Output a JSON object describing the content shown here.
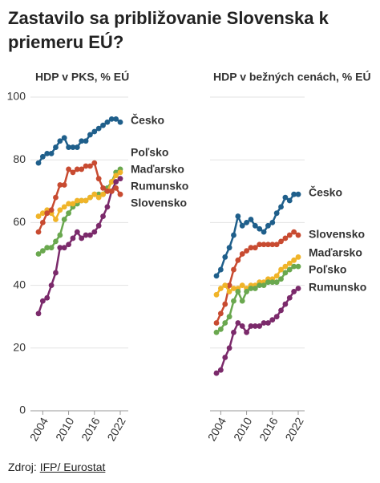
{
  "title": "Zastavilo sa približovanie Slovenska k priemeru EÚ?",
  "source_prefix": "Zdroj:",
  "source_link": "IFP/ Eurostat",
  "chart_data": [
    {
      "type": "line",
      "subtitle": "HDP v PKS, % EÚ",
      "x": [
        2003,
        2004,
        2005,
        2006,
        2007,
        2008,
        2009,
        2010,
        2011,
        2012,
        2013,
        2014,
        2015,
        2016,
        2017,
        2018,
        2019,
        2020,
        2021,
        2022
      ],
      "xlim": [
        2003,
        2022
      ],
      "xticks": [
        2004,
        2010,
        2016,
        2022
      ],
      "ylim": [
        0,
        100
      ],
      "yticks": [
        0,
        20,
        40,
        60,
        80,
        100
      ],
      "grid": true,
      "series": [
        {
          "name": "Česko",
          "color": "#1f5f8b",
          "values": [
            79,
            81,
            82,
            82,
            84,
            86,
            87,
            84,
            84,
            84,
            86,
            86,
            88,
            89,
            90,
            91,
            92,
            93,
            93,
            92
          ]
        },
        {
          "name": "Poľsko",
          "color": "#6aa84f",
          "values": [
            50,
            51,
            52,
            52,
            54,
            56,
            61,
            63,
            65,
            66,
            67,
            67,
            68,
            69,
            69,
            69,
            71,
            73,
            76,
            77
          ]
        },
        {
          "name": "Maďarsko",
          "color": "#f0b429",
          "values": [
            62,
            63,
            64,
            63,
            61,
            64,
            65,
            66,
            66,
            67,
            67,
            67,
            68,
            69,
            68,
            69,
            70,
            73,
            75,
            76
          ]
        },
        {
          "name": "Rumunsko",
          "color": "#7b2a6b",
          "values": [
            31,
            35,
            36,
            40,
            44,
            52,
            52,
            53,
            55,
            57,
            55,
            56,
            56,
            57,
            59,
            62,
            65,
            70,
            73,
            74
          ]
        },
        {
          "name": "Slovensko",
          "color": "#c84b31",
          "values": [
            57,
            60,
            63,
            64,
            68,
            72,
            72,
            77,
            76,
            77,
            77,
            78,
            78,
            79,
            74,
            71,
            70,
            70,
            71,
            69
          ]
        }
      ]
    },
    {
      "type": "line",
      "subtitle": "HDP v bežných cenách, % EÚ",
      "x": [
        2003,
        2004,
        2005,
        2006,
        2007,
        2008,
        2009,
        2010,
        2011,
        2012,
        2013,
        2014,
        2015,
        2016,
        2017,
        2018,
        2019,
        2020,
        2021,
        2022
      ],
      "xlim": [
        2003,
        2022
      ],
      "xticks": [
        2004,
        2010,
        2016,
        2022
      ],
      "ylim": [
        0,
        100
      ],
      "yticks": [
        0,
        20,
        40,
        60,
        80,
        100
      ],
      "grid": true,
      "series": [
        {
          "name": "Česko",
          "color": "#1f5f8b",
          "values": [
            43,
            45,
            49,
            52,
            56,
            62,
            59,
            60,
            61,
            59,
            58,
            57,
            59,
            60,
            63,
            65,
            68,
            67,
            69,
            69
          ]
        },
        {
          "name": "Slovensko",
          "color": "#c84b31",
          "values": [
            28,
            31,
            34,
            40,
            45,
            48,
            50,
            51,
            52,
            52,
            53,
            53,
            53,
            53,
            53,
            54,
            55,
            56,
            57,
            56
          ]
        },
        {
          "name": "Maďarsko",
          "color": "#f0b429",
          "values": [
            37,
            39,
            40,
            38,
            39,
            39,
            40,
            39,
            40,
            40,
            41,
            41,
            42,
            42,
            43,
            45,
            46,
            47,
            48,
            49
          ]
        },
        {
          "name": "Poľsko",
          "color": "#6aa84f",
          "values": [
            25,
            26,
            28,
            30,
            35,
            38,
            35,
            38,
            39,
            39,
            40,
            40,
            41,
            41,
            41,
            42,
            44,
            45,
            46,
            46
          ]
        },
        {
          "name": "Rumunsko",
          "color": "#7b2a6b",
          "values": [
            12,
            13,
            17,
            20,
            25,
            28,
            27,
            25,
            27,
            27,
            27,
            28,
            28,
            29,
            30,
            32,
            34,
            36,
            38,
            39
          ]
        }
      ]
    }
  ]
}
